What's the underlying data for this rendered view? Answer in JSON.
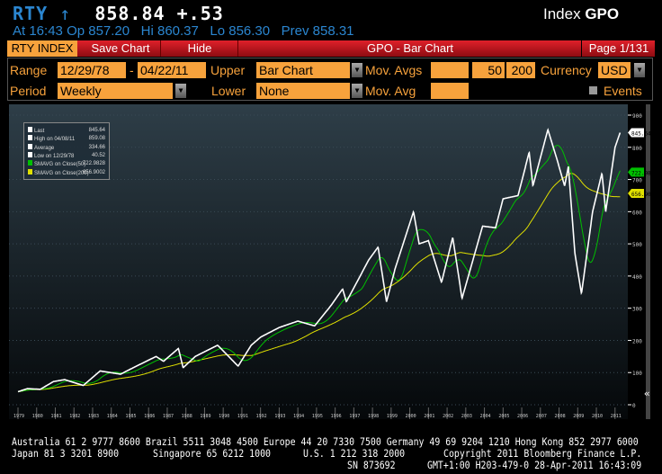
{
  "header": {
    "ticker": "RTY",
    "arrow": "↑",
    "last": "858.84",
    "change": "+.53",
    "function_label": "Index",
    "function_code": "GPO",
    "quote_line": {
      "at": "At 16:43",
      "open": "Op 857.20",
      "high": "Hi 860.37",
      "low": "Lo 856.30",
      "prev": "Prev 858.31"
    }
  },
  "toolbar": {
    "security": "RTY INDEX",
    "save_chart": "Save Chart",
    "hide": "Hide",
    "title": "GPO - Bar Chart",
    "page": "Page 1/131"
  },
  "controls": {
    "range_label": "Range",
    "range_start": "12/29/78",
    "range_sep": "-",
    "range_end": "04/22/11",
    "upper_label": "Upper",
    "upper_value": "Bar Chart",
    "mov_avgs_label": "Mov. Avgs",
    "mov_avg_1": "",
    "mov_avg_2": "50",
    "mov_avg_3": "200",
    "currency_label": "Currency",
    "currency_value": "USD",
    "period_label": "Period",
    "period_value": "Weekly",
    "lower_label": "Lower",
    "lower_value": "None",
    "mov_avg_label": "Mov. Avg",
    "mov_avg_value": "",
    "events_label": "Events"
  },
  "legend": [
    {
      "label": "Last",
      "value": "845.64",
      "color": "#ffffff"
    },
    {
      "label": "High on 04/08/11",
      "value": "859.08",
      "color": "#ffffff"
    },
    {
      "label": "Average",
      "value": "334.66",
      "color": "#ffffff"
    },
    {
      "label": "Low on 12/29/78",
      "value": "40.52",
      "color": "#ffffff"
    },
    {
      "label": "SMAVG on Close(50)",
      "value": "722.9828",
      "color": "#00c000"
    },
    {
      "label": "SMAVG on Close(200)",
      "value": "656.9002",
      "color": "#e0e000"
    }
  ],
  "chart_data": {
    "type": "line",
    "ylim": [
      0,
      900
    ],
    "yticks": [
      "0",
      "100",
      "200",
      "300",
      "400",
      "500",
      "600",
      "700",
      "800",
      "900"
    ],
    "xticks": [
      "1979",
      "1980",
      "1981",
      "1982",
      "1983",
      "1984",
      "1985",
      "1986",
      "1987",
      "1988",
      "1989",
      "1990",
      "1991",
      "1992",
      "1993",
      "1994",
      "1995",
      "1996",
      "1997",
      "1998",
      "1999",
      "2000",
      "2001",
      "2002",
      "2003",
      "2004",
      "2005",
      "2006",
      "2007",
      "2008",
      "2009",
      "2010",
      "2011"
    ],
    "price": [
      [
        1979.0,
        40.5
      ],
      [
        1979.5,
        50
      ],
      [
        1980.2,
        48
      ],
      [
        1980.9,
        72
      ],
      [
        1981.5,
        78
      ],
      [
        1982.5,
        60
      ],
      [
        1983.4,
        105
      ],
      [
        1984.5,
        95
      ],
      [
        1985.0,
        110
      ],
      [
        1986.4,
        150
      ],
      [
        1986.8,
        135
      ],
      [
        1987.6,
        175
      ],
      [
        1987.85,
        115
      ],
      [
        1988.5,
        150
      ],
      [
        1989.7,
        185
      ],
      [
        1990.8,
        120
      ],
      [
        1991.5,
        185
      ],
      [
        1992.0,
        210
      ],
      [
        1993.0,
        240
      ],
      [
        1994.0,
        260
      ],
      [
        1994.9,
        245
      ],
      [
        1995.8,
        310
      ],
      [
        1996.4,
        360
      ],
      [
        1996.6,
        320
      ],
      [
        1997.8,
        450
      ],
      [
        1998.3,
        490
      ],
      [
        1998.75,
        320
      ],
      [
        1999.2,
        420
      ],
      [
        2000.2,
        600
      ],
      [
        2000.5,
        500
      ],
      [
        2001.0,
        510
      ],
      [
        2001.7,
        380
      ],
      [
        2002.3,
        520
      ],
      [
        2002.8,
        330
      ],
      [
        2003.9,
        555
      ],
      [
        2004.6,
        550
      ],
      [
        2005.0,
        640
      ],
      [
        2005.8,
        650
      ],
      [
        2006.4,
        785
      ],
      [
        2006.6,
        680
      ],
      [
        2007.4,
        855
      ],
      [
        2007.9,
        760
      ],
      [
        2008.3,
        680
      ],
      [
        2008.5,
        740
      ],
      [
        2008.85,
        470
      ],
      [
        2009.2,
        345
      ],
      [
        2009.8,
        600
      ],
      [
        2010.3,
        720
      ],
      [
        2010.5,
        600
      ],
      [
        2011.0,
        800
      ],
      [
        2011.27,
        845.64
      ]
    ],
    "last": 845.64,
    "sma50": 722.98,
    "sma200": 656.9,
    "series_colors": {
      "price": "#ffffff",
      "sma50": "#00c000",
      "sma200": "#e0e000"
    }
  },
  "footer": {
    "line1": "Australia 61 2 9777 8600 Brazil 5511 3048 4500 Europe 44 20 7330 7500 Germany 49 69 9204 1210 Hong Kong 852 2977 6000",
    "line2a": "Japan 81 3 3201 8900",
    "line2b": "Singapore 65 6212 1000",
    "line2c": "U.S. 1 212 318 2000",
    "line2d": "Copyright 2011 Bloomberg Finance L.P.",
    "line3a": "SN 873692",
    "line3b": "GMT+1:00 H203-479-0 28-Apr-2011 16:43:09"
  }
}
